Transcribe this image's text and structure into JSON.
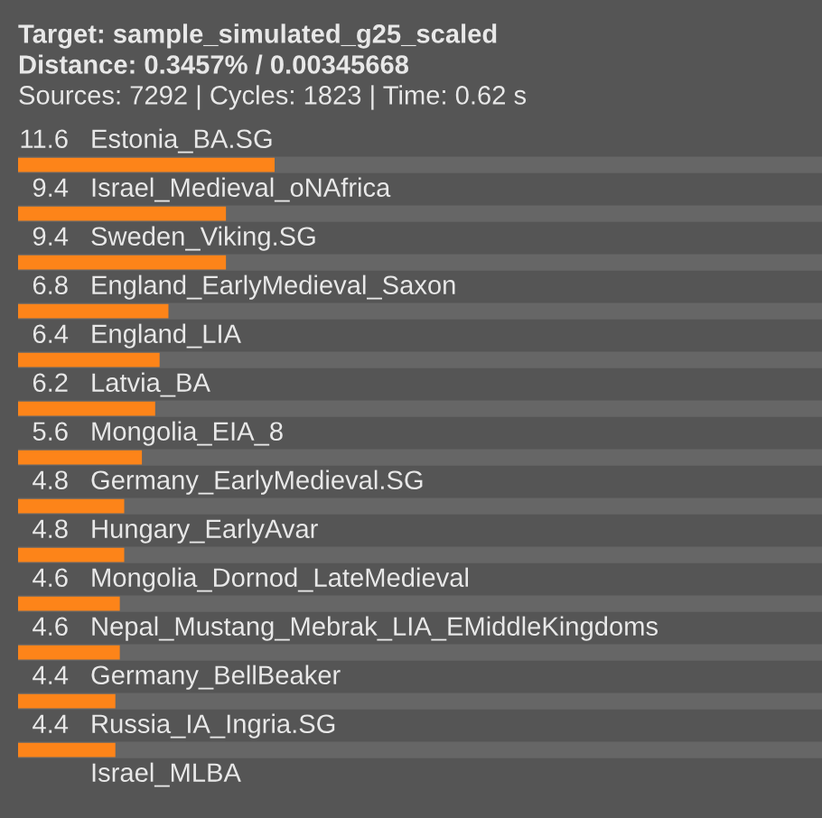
{
  "chart_data": {
    "type": "bar",
    "orientation": "horizontal",
    "title": "Target: sample_simulated_g25_scaled",
    "subtitle": "Distance: 0.3457% / 0.00345668",
    "annotations": [
      "Sources: 7292 | Cycles: 1823 | Time: 0.62 s"
    ],
    "categories": [
      "Estonia_BA.SG",
      "Israel_Medieval_oNAfrica",
      "Sweden_Viking.SG",
      "England_EarlyMedieval_Saxon",
      "England_LIA",
      "Latvia_BA",
      "Mongolia_EIA_8",
      "Germany_EarlyMedieval.SG",
      "Hungary_EarlyAvar",
      "Mongolia_Dornod_LateMedieval",
      "Nepal_Mustang_Mebrak_LIA_EMiddleKingdoms",
      "Germany_BellBeaker",
      "Russia_IA_Ingria.SG",
      "Israel_MLBA"
    ],
    "values": [
      11.6,
      9.4,
      9.4,
      6.8,
      6.4,
      6.2,
      5.6,
      4.8,
      4.8,
      4.6,
      4.6,
      4.4,
      4.4,
      null
    ],
    "color": "#fd8419",
    "data_labels": true
  }
}
